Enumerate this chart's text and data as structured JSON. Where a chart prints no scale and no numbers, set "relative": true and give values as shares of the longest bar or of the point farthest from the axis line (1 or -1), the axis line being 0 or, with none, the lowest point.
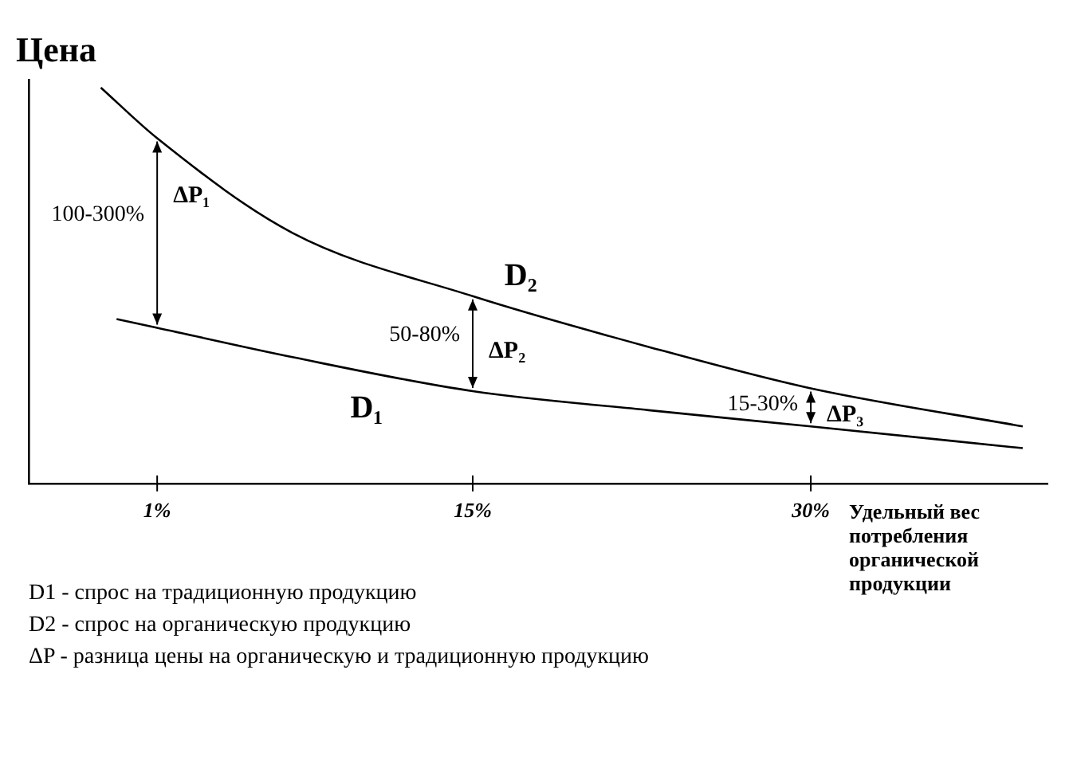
{
  "chart_data": {
    "type": "line",
    "ylabel": "Цена",
    "xlabel": "Удельный вес потребления органической продукции",
    "relative": true,
    "legend": false,
    "grid": false,
    "marker": "none",
    "xlim": [
      -4.7,
      40.5
    ],
    "xticks": [
      {
        "value": 1,
        "label": "1%"
      },
      {
        "value": 15,
        "label": "15%"
      },
      {
        "value": 30,
        "label": "30%"
      }
    ],
    "series": [
      {
        "name": "D₁",
        "color": "#000000",
        "x": [
          -0.8,
          1,
          7,
          15,
          22.8,
          30,
          39.4
        ],
        "values": [
          0.415,
          0.393,
          0.319,
          0.233,
          0.185,
          0.144,
          0.089
        ]
      },
      {
        "name": "D₂",
        "color": "#000000",
        "x": [
          -1.5,
          1,
          7,
          15,
          22.8,
          30,
          39.4
        ],
        "values": [
          1,
          0.872,
          0.633,
          0.473,
          0.345,
          0.24,
          0.144
        ]
      }
    ],
    "annotations": [
      "100-300%",
      "ΔP₁",
      "50-80%",
      "ΔP₂",
      "15-30%",
      "ΔP₃",
      "D1 - спрос на традиционную продукцию",
      "D2 - спрос на органическую продукцию",
      "ΔP - разница цены на органическую и традиционную продукцию"
    ]
  }
}
